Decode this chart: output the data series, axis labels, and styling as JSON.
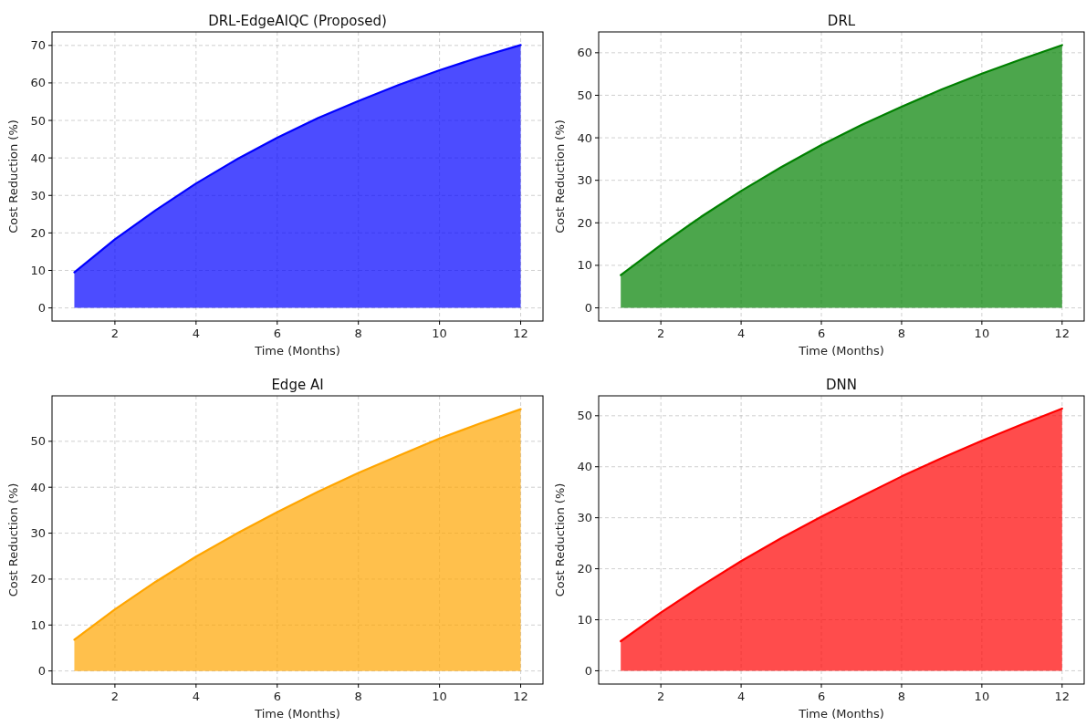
{
  "chart_data": [
    {
      "type": "area",
      "title": "DRL-EdgeAIQC (Proposed)",
      "xlabel": "Time (Months)",
      "ylabel": "Cost Reduction (%)",
      "x": [
        1,
        2,
        3,
        4,
        5,
        6,
        7,
        8,
        9,
        10,
        11,
        12
      ],
      "series": [
        {
          "color": "#0000ff",
          "values": [
            9.5,
            18.3,
            26,
            33.2,
            39.6,
            45.4,
            50.6,
            55.2,
            59.5,
            63.4,
            66.9,
            70.1
          ]
        }
      ],
      "xlim": [
        0.45,
        12.55
      ],
      "xticks": [
        2,
        4,
        6,
        8,
        10,
        12
      ],
      "ylim": [
        -3.5,
        73.6
      ],
      "yticks": [
        0,
        10,
        20,
        30,
        40,
        50,
        60,
        70
      ],
      "grid": true
    },
    {
      "type": "area",
      "title": "DRL",
      "xlabel": "Time (Months)",
      "ylabel": "Cost Reduction (%)",
      "x": [
        1,
        2,
        3,
        4,
        5,
        6,
        7,
        8,
        9,
        10,
        11,
        12
      ],
      "series": [
        {
          "color": "#008000",
          "values": [
            7.7,
            14.8,
            21.4,
            27.5,
            33.1,
            38.3,
            43.0,
            47.3,
            51.4,
            55.1,
            58.5,
            61.8
          ]
        }
      ],
      "xlim": [
        0.45,
        12.55
      ],
      "xticks": [
        2,
        4,
        6,
        8,
        10,
        12
      ],
      "ylim": [
        -3.1,
        64.9
      ],
      "yticks": [
        0,
        10,
        20,
        30,
        40,
        50,
        60
      ],
      "grid": true
    },
    {
      "type": "area",
      "title": "Edge AI",
      "xlabel": "Time (Months)",
      "ylabel": "Cost Reduction (%)",
      "x": [
        1,
        2,
        3,
        4,
        5,
        6,
        7,
        8,
        9,
        10,
        11,
        12
      ],
      "series": [
        {
          "color": "#ffa500",
          "values": [
            6.8,
            13.4,
            19.4,
            24.9,
            29.9,
            34.6,
            39.0,
            43.1,
            46.9,
            50.6,
            53.9,
            57.0
          ]
        }
      ],
      "xlim": [
        0.45,
        12.55
      ],
      "xticks": [
        2,
        4,
        6,
        8,
        10,
        12
      ],
      "ylim": [
        -2.85,
        59.9
      ],
      "yticks": [
        0,
        10,
        20,
        30,
        40,
        50
      ],
      "grid": true
    },
    {
      "type": "area",
      "title": "DNN",
      "xlabel": "Time (Months)",
      "ylabel": "Cost Reduction (%)",
      "x": [
        1,
        2,
        3,
        4,
        5,
        6,
        7,
        8,
        9,
        10,
        11,
        12
      ],
      "series": [
        {
          "color": "#ff0000",
          "values": [
            5.8,
            11.4,
            16.6,
            21.5,
            26.0,
            30.2,
            34.2,
            38.1,
            41.7,
            45.1,
            48.3,
            51.4
          ]
        }
      ],
      "xlim": [
        0.45,
        12.55
      ],
      "xticks": [
        2,
        4,
        6,
        8,
        10,
        12
      ],
      "ylim": [
        -2.6,
        53.9
      ],
      "yticks": [
        0,
        10,
        20,
        30,
        40,
        50
      ],
      "grid": true
    }
  ]
}
